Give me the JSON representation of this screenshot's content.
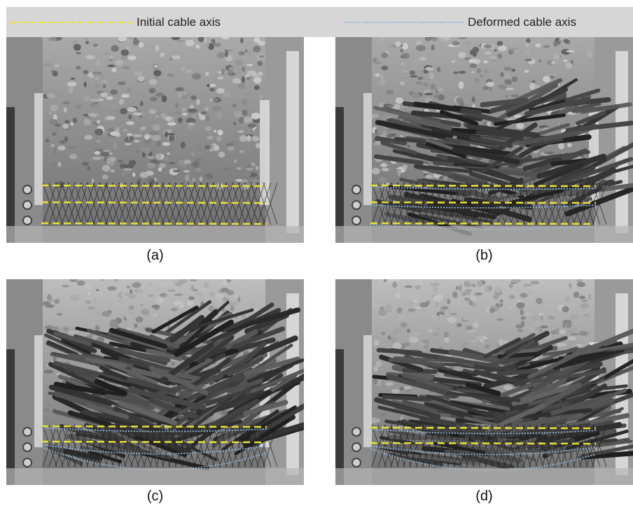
{
  "legend": {
    "initial_label": "Initial cable axis",
    "deformed_label": "Deformed cable axis",
    "initial_color": "#e8e230",
    "deformed_color": "#8fb6d8"
  },
  "panels": [
    {
      "caption": "(a)"
    },
    {
      "caption": "(b)"
    },
    {
      "caption": "(c)"
    },
    {
      "caption": "(d)"
    }
  ]
}
